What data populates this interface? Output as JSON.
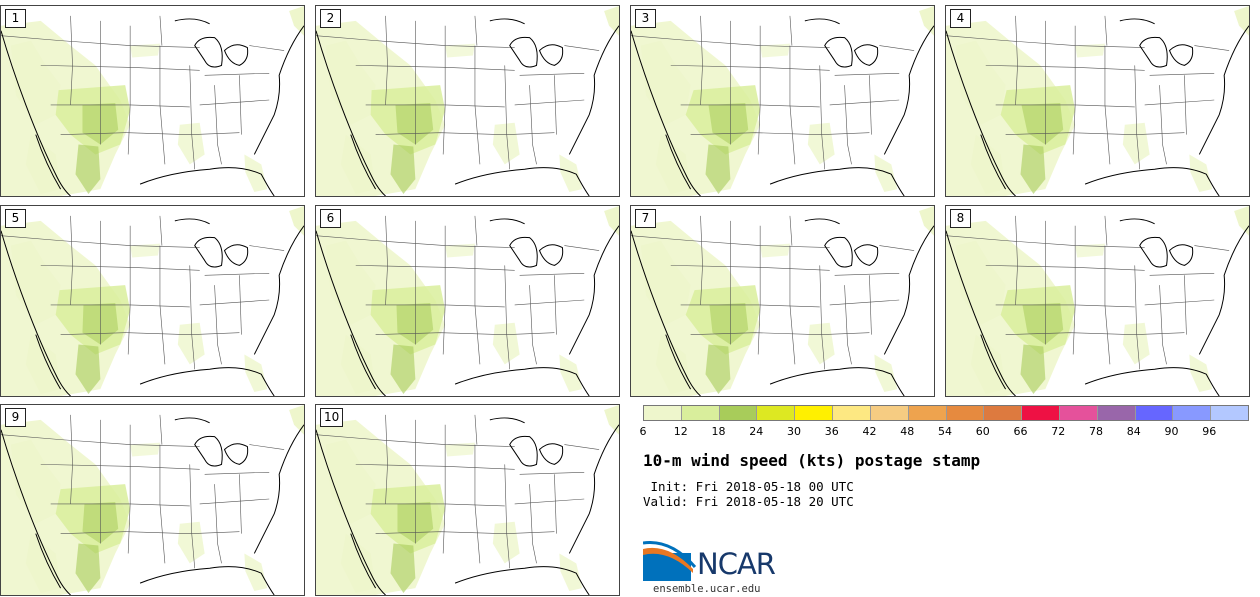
{
  "panels": [
    {
      "label": "1"
    },
    {
      "label": "2"
    },
    {
      "label": "3"
    },
    {
      "label": "4"
    },
    {
      "label": "5"
    },
    {
      "label": "6"
    },
    {
      "label": "7"
    },
    {
      "label": "8"
    },
    {
      "label": "9"
    },
    {
      "label": "10"
    }
  ],
  "map": {
    "land_color": "#ffffff",
    "light_green": "#eef6cc",
    "mid_green": "#d9ee9c",
    "dark_green": "#a8cc5a",
    "border_color": "#555555",
    "coast_color": "#000000"
  },
  "colorbar": {
    "colors": [
      "#eef6cc",
      "#d9ee9c",
      "#a8cc5a",
      "#dde822",
      "#fff000",
      "#fde882",
      "#f6cc82",
      "#eea34e",
      "#e68a3f",
      "#dd7a3f",
      "#ee1144",
      "#e5519b",
      "#9966aa",
      "#6666ff",
      "#8899ff",
      "#b3c8ff"
    ],
    "tick_labels": [
      "6",
      "12",
      "18",
      "24",
      "30",
      "36",
      "42",
      "48",
      "54",
      "60",
      "66",
      "72",
      "78",
      "84",
      "90",
      "96"
    ]
  },
  "title": "10-m wind speed (kts) postage stamp",
  "init_line": " Init: Fri 2018-05-18 00 UTC",
  "valid_line": "Valid: Fri 2018-05-18 20 UTC",
  "logo": {
    "text": "NCAR",
    "blue": "#0071bc",
    "orange": "#e87722"
  },
  "website": "ensemble.ucar.edu"
}
